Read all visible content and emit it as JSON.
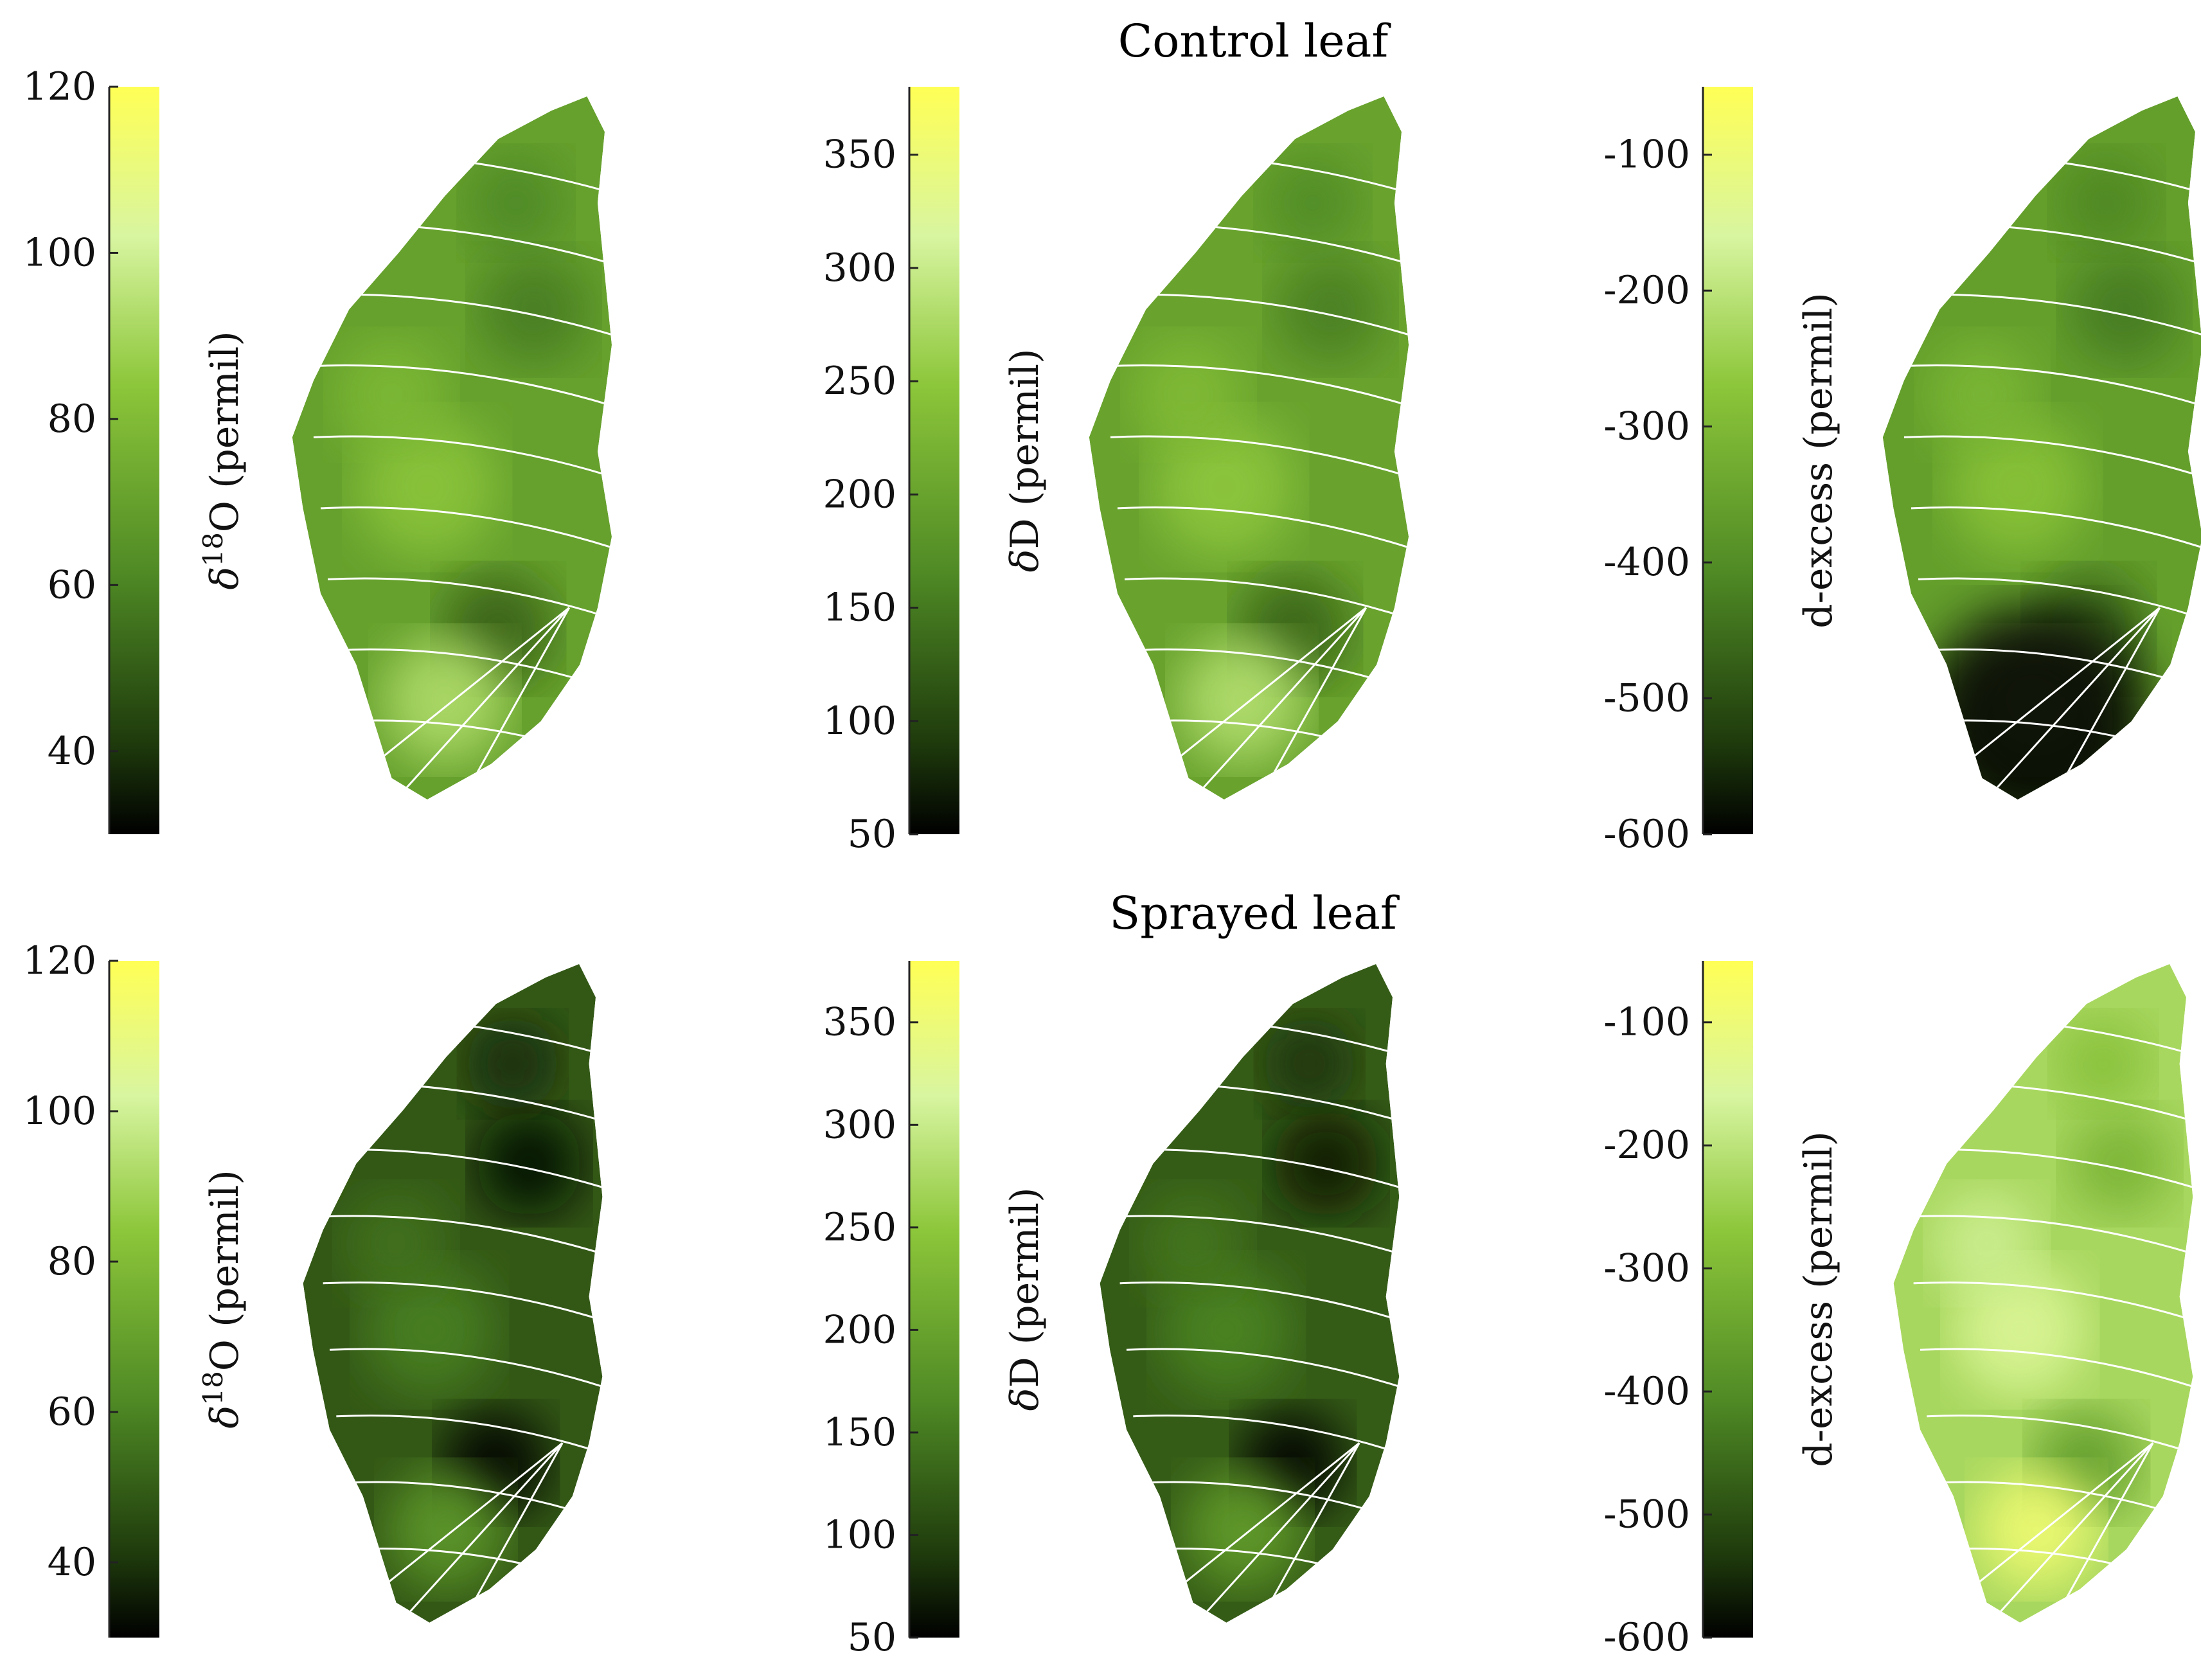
{
  "chart_data": [
    {
      "type": "heatmap",
      "row_title": "Control leaf",
      "colorbar_label_parts": [
        "δ",
        "18",
        "O (permil)"
      ],
      "colorbar_ticks": [
        40,
        60,
        80,
        100,
        120
      ],
      "colorbar_range": [
        30,
        120
      ],
      "leaf_mean_value": 70,
      "dark_spots": 3,
      "light_spots": 4
    },
    {
      "type": "heatmap",
      "row_title": "",
      "colorbar_label_parts": [
        "δ",
        "",
        "D (permil)"
      ],
      "colorbar_ticks": [
        50,
        100,
        150,
        200,
        250,
        300,
        350
      ],
      "colorbar_range": [
        50,
        380
      ],
      "leaf_mean_value": 200
    },
    {
      "type": "heatmap",
      "row_title": "",
      "colorbar_label_parts": [
        "",
        "",
        "d-excess (permil)"
      ],
      "colorbar_ticks": [
        -600,
        -500,
        -400,
        -300,
        -200,
        -100
      ],
      "colorbar_range": [
        -600,
        -50
      ],
      "leaf_mean_value": -360,
      "dark_base_region": true
    },
    {
      "type": "heatmap",
      "row_title": "Sprayed leaf",
      "colorbar_label_parts": [
        "δ",
        "18",
        "O (permil)"
      ],
      "colorbar_ticks": [
        40,
        60,
        80,
        100,
        120
      ],
      "colorbar_range": [
        30,
        120
      ],
      "leaf_mean_value": 45
    },
    {
      "type": "heatmap",
      "row_title": "",
      "colorbar_label_parts": [
        "δ",
        "",
        "D (permil)"
      ],
      "colorbar_ticks": [
        50,
        100,
        150,
        200,
        250,
        300,
        350
      ],
      "colorbar_range": [
        50,
        380
      ],
      "leaf_mean_value": 110
    },
    {
      "type": "heatmap",
      "row_title": "",
      "colorbar_label_parts": [
        "",
        "",
        "d-excess (permil)"
      ],
      "colorbar_ticks": [
        -600,
        -500,
        -400,
        -300,
        -200,
        -100
      ],
      "colorbar_range": [
        -600,
        -50
      ],
      "leaf_mean_value": -230
    }
  ],
  "colors": {
    "colormap": [
      "#000000",
      "#2c4b12",
      "#4f8a25",
      "#8cc63a",
      "#d8f5a0",
      "#ffff55"
    ],
    "vein": "#ffffff"
  }
}
